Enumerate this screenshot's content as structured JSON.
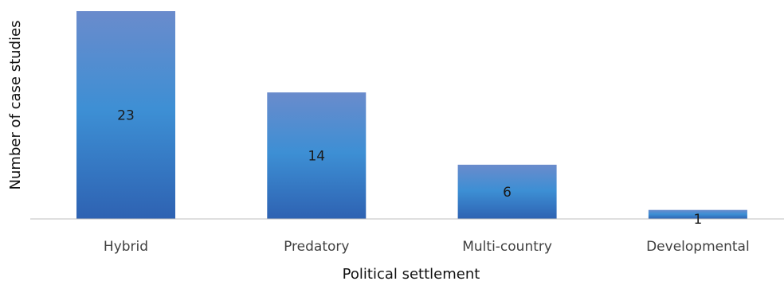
{
  "chart_data": {
    "type": "bar",
    "categories": [
      "Hybrid",
      "Predatory",
      "Multi-country",
      "Developmental"
    ],
    "values": [
      23,
      14,
      6,
      1
    ],
    "data_labels": [
      "23",
      "14",
      "6",
      "1"
    ],
    "xlabel": "Political settlement",
    "ylabel": "Number of case studies",
    "ylim": [
      0,
      23
    ],
    "grid": false,
    "legend": "none",
    "colors": {
      "bar_top": "#6a8bcc",
      "bar_mid": "#3d8fd4",
      "bar_bottom": "#2e62b2",
      "axis": "#bfbfbf"
    }
  }
}
